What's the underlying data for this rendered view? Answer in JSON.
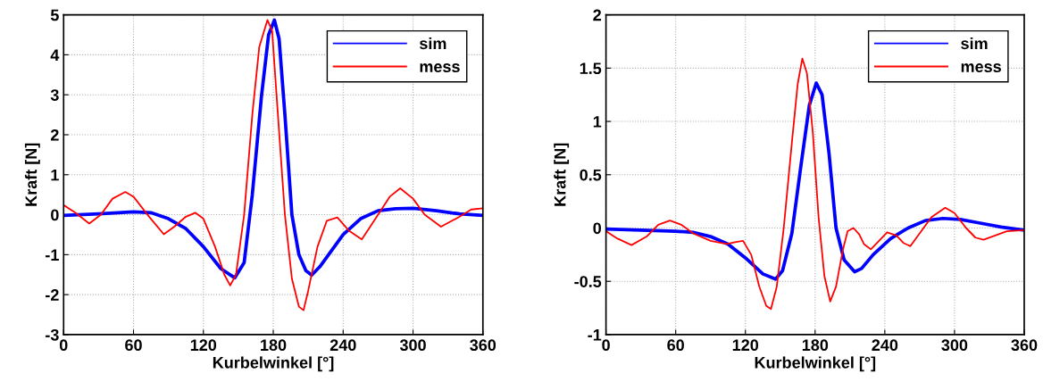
{
  "chart_data": [
    {
      "type": "line",
      "xlabel": "Kurbelwinkel [°]",
      "ylabel": "Kraft [N]",
      "xlim": [
        0,
        360
      ],
      "xticks": [
        0,
        60,
        120,
        180,
        240,
        300,
        360
      ],
      "ylim": [
        -3,
        5
      ],
      "yticks": [
        -3,
        -2,
        -1,
        0,
        1,
        2,
        3,
        4,
        5
      ],
      "grid": true,
      "legend": "top right",
      "marker": "none",
      "line_style": "solid",
      "series": [
        {
          "name": "sim",
          "color": "#0000ff",
          "x": [
            0,
            30,
            60,
            75,
            90,
            105,
            120,
            135,
            147,
            155,
            162,
            170,
            176,
            181,
            185,
            190,
            196,
            202,
            208,
            213,
            220,
            230,
            240,
            255,
            270,
            285,
            300,
            320,
            340,
            360
          ],
          "values": [
            -0.02,
            0.02,
            0.07,
            0.05,
            -0.1,
            -0.35,
            -0.8,
            -1.35,
            -1.58,
            -1.2,
            0.5,
            3.0,
            4.5,
            4.87,
            4.4,
            2.5,
            0.0,
            -1.0,
            -1.4,
            -1.51,
            -1.3,
            -0.9,
            -0.5,
            -0.1,
            0.1,
            0.15,
            0.16,
            0.1,
            0.02,
            -0.02
          ]
        },
        {
          "name": "mess",
          "color": "#ff0000",
          "x": [
            0,
            10,
            22,
            32,
            42,
            53,
            60,
            72,
            86,
            95,
            105,
            113,
            120,
            130,
            138,
            143,
            148,
            155,
            162,
            168,
            175,
            179,
            184,
            190,
            196,
            202,
            206,
            210,
            218,
            226,
            235,
            245,
            256,
            270,
            280,
            289,
            300,
            310,
            324,
            340,
            350,
            360
          ],
          "values": [
            0.24,
            0.05,
            -0.22,
            0.0,
            0.4,
            0.57,
            0.45,
            0.0,
            -0.49,
            -0.3,
            -0.05,
            0.05,
            -0.1,
            -0.8,
            -1.5,
            -1.77,
            -1.5,
            0.0,
            2.5,
            4.2,
            4.87,
            4.6,
            2.5,
            0.0,
            -1.6,
            -2.3,
            -2.39,
            -1.9,
            -0.8,
            -0.15,
            -0.07,
            -0.4,
            -0.62,
            0.0,
            0.45,
            0.66,
            0.4,
            0.0,
            -0.3,
            -0.05,
            0.13,
            0.16
          ]
        }
      ]
    },
    {
      "type": "line",
      "xlabel": "Kurbelwinkel [°]",
      "ylabel": "Kraft [N]",
      "xlim": [
        0,
        360
      ],
      "xticks": [
        0,
        60,
        120,
        180,
        240,
        300,
        360
      ],
      "ylim": [
        -1,
        2
      ],
      "yticks": [
        -1,
        -0.5,
        0,
        0.5,
        1,
        1.5,
        2
      ],
      "grid": true,
      "legend": "top right",
      "marker": "none",
      "line_style": "solid",
      "series": [
        {
          "name": "sim",
          "color": "#0000ff",
          "x": [
            0,
            30,
            60,
            75,
            90,
            105,
            120,
            135,
            146,
            152,
            160,
            168,
            175,
            181,
            186,
            192,
            198,
            205,
            214,
            220,
            230,
            245,
            260,
            275,
            290,
            305,
            320,
            340,
            360
          ],
          "values": [
            -0.01,
            -0.02,
            -0.03,
            -0.04,
            -0.08,
            -0.15,
            -0.28,
            -0.43,
            -0.48,
            -0.4,
            -0.05,
            0.6,
            1.15,
            1.36,
            1.25,
            0.7,
            0.0,
            -0.3,
            -0.41,
            -0.38,
            -0.25,
            -0.1,
            0.0,
            0.07,
            0.09,
            0.08,
            0.05,
            0.01,
            -0.02
          ]
        },
        {
          "name": "mess",
          "color": "#ff0000",
          "x": [
            0,
            10,
            22,
            35,
            45,
            55,
            65,
            75,
            90,
            104,
            112,
            118,
            125,
            132,
            138,
            142,
            147,
            153,
            160,
            165,
            169,
            173,
            178,
            183,
            188,
            193,
            198,
            204,
            208,
            213,
            218,
            222,
            228,
            235,
            242,
            250,
            256,
            262,
            270,
            280,
            292,
            300,
            310,
            318,
            325,
            335,
            345,
            360
          ],
          "values": [
            -0.03,
            -0.1,
            -0.16,
            -0.08,
            0.03,
            0.07,
            0.03,
            -0.05,
            -0.12,
            -0.15,
            -0.13,
            -0.12,
            -0.25,
            -0.55,
            -0.73,
            -0.76,
            -0.55,
            0.0,
            0.8,
            1.35,
            1.59,
            1.45,
            0.9,
            0.1,
            -0.45,
            -0.69,
            -0.55,
            -0.2,
            -0.03,
            0.0,
            -0.06,
            -0.15,
            -0.2,
            -0.12,
            -0.04,
            -0.07,
            -0.14,
            -0.17,
            -0.05,
            0.1,
            0.19,
            0.14,
            0.0,
            -0.09,
            -0.11,
            -0.07,
            -0.03,
            -0.02
          ]
        }
      ]
    }
  ]
}
